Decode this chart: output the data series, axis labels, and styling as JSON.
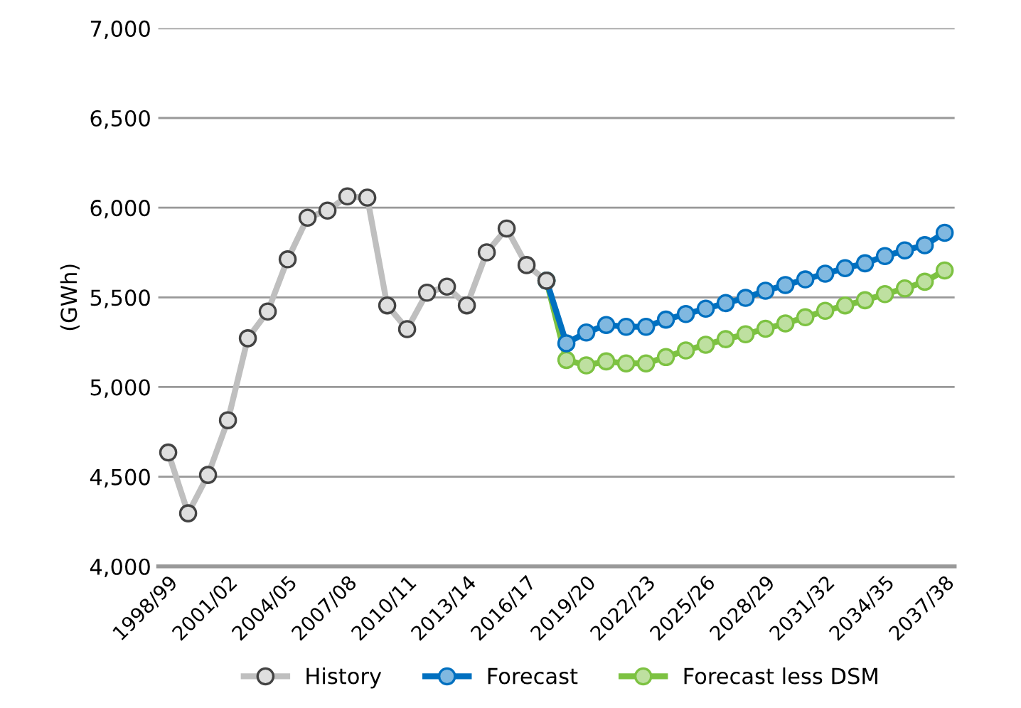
{
  "chart_data": {
    "type": "line",
    "ylabel": "(GWh)",
    "categories": [
      "1998/99",
      null,
      null,
      "2001/02",
      null,
      null,
      "2004/05",
      null,
      null,
      "2007/08",
      null,
      null,
      "2010/11",
      null,
      null,
      "2013/14",
      null,
      null,
      "2016/17",
      null,
      null,
      "2019/20",
      null,
      null,
      "2022/23",
      null,
      null,
      "2025/26",
      null,
      null,
      "2028/29",
      null,
      null,
      "2031/32",
      null,
      null,
      "2034/35",
      null,
      null,
      "2037/38"
    ],
    "series": [
      {
        "name": "History",
        "color": "#bfbfbf",
        "values": [
          4635,
          4296,
          4510,
          4815,
          5272,
          5421,
          5712,
          5944,
          5984,
          6063,
          6056,
          5455,
          5323,
          5526,
          5560,
          5455,
          5751,
          5884,
          5680,
          5593,
          null,
          null,
          null,
          null,
          null,
          null,
          null,
          null,
          null,
          null,
          null,
          null,
          null,
          null,
          null,
          null,
          null,
          null,
          null,
          null
        ]
      },
      {
        "name": "Forecast",
        "color": "#0070c0",
        "values": [
          null,
          null,
          null,
          null,
          null,
          null,
          null,
          null,
          null,
          null,
          null,
          null,
          null,
          null,
          null,
          null,
          null,
          null,
          null,
          5593,
          5244,
          5304,
          5346,
          5336,
          5336,
          5376,
          5407,
          5437,
          5468,
          5497,
          5537,
          5569,
          5600,
          5632,
          5663,
          5690,
          5730,
          5762,
          5791,
          5860
        ]
      },
      {
        "name": "Forecast less DSM",
        "color": "#7dc242",
        "values": [
          null,
          null,
          null,
          null,
          null,
          null,
          null,
          null,
          null,
          null,
          null,
          null,
          null,
          null,
          null,
          null,
          null,
          null,
          null,
          5593,
          5151,
          5121,
          5143,
          5132,
          5132,
          5167,
          5204,
          5236,
          5267,
          5294,
          5325,
          5355,
          5389,
          5425,
          5455,
          5484,
          5518,
          5550,
          5587,
          5650
        ]
      }
    ],
    "ylim": [
      4000,
      7000
    ],
    "yticks": [
      {
        "value": 4000,
        "label": "4,000"
      },
      {
        "value": 4500,
        "label": "4,500"
      },
      {
        "value": 5000,
        "label": "5,000"
      },
      {
        "value": 5500,
        "label": "5,500"
      },
      {
        "value": 6000,
        "label": "6,000"
      },
      {
        "value": 6500,
        "label": "6,500"
      },
      {
        "value": 7000,
        "label": "7,000"
      }
    ],
    "grid": "y",
    "legend": "bottom",
    "marker": "circle",
    "line_style": "solid"
  }
}
